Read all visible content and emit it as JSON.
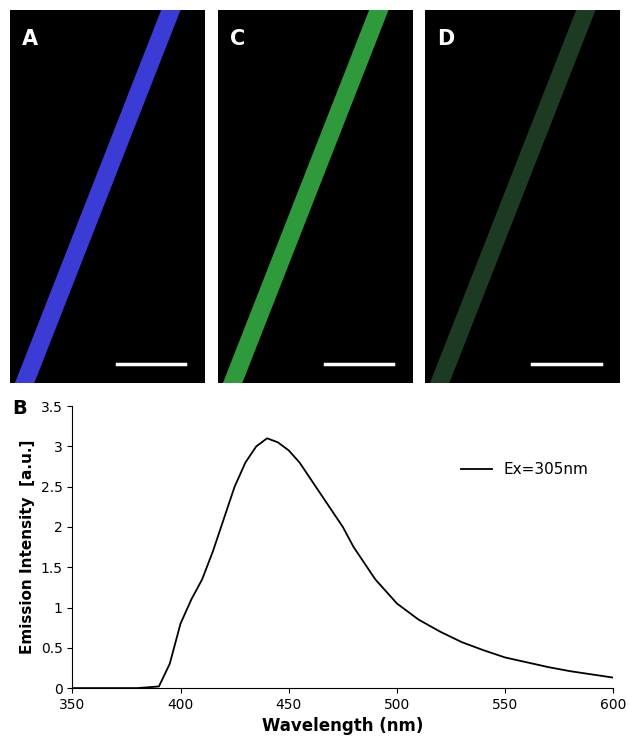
{
  "image_panels": [
    {
      "label": "A",
      "color": "#3b3bd6"
    },
    {
      "label": "C",
      "color": "#2f9a3c"
    },
    {
      "label": "D",
      "color": "#1d3a22"
    }
  ],
  "chart_data": {
    "type": "line",
    "annotations": [
      "B"
    ],
    "x_label": "Wavelength (nm)",
    "y_label": "Emission Intensity  [a.u.]",
    "x": [
      350,
      360,
      370,
      380,
      390,
      395,
      400,
      405,
      410,
      415,
      420,
      425,
      430,
      435,
      440,
      445,
      450,
      455,
      460,
      465,
      470,
      475,
      480,
      485,
      490,
      495,
      500,
      510,
      520,
      530,
      540,
      550,
      560,
      570,
      580,
      590,
      600
    ],
    "series": [
      {
        "name": "Ex=305nm",
        "color": "#000000",
        "values": [
          0,
          0,
          0,
          0,
          0.02,
          0.3,
          0.8,
          1.1,
          1.35,
          1.7,
          2.1,
          2.5,
          2.8,
          3.0,
          3.1,
          3.05,
          2.95,
          2.8,
          2.6,
          2.4,
          2.2,
          2.0,
          1.75,
          1.55,
          1.35,
          1.2,
          1.05,
          0.85,
          0.7,
          0.57,
          0.47,
          0.38,
          0.32,
          0.26,
          0.21,
          0.17,
          0.13
        ]
      }
    ],
    "xlim": [
      350,
      600
    ],
    "xticks": [
      350,
      400,
      450,
      500,
      550,
      600
    ],
    "ylim": [
      0,
      3.5
    ],
    "yticks": [
      0,
      0.5,
      1,
      1.5,
      2,
      2.5,
      3,
      3.5
    ],
    "grid": false,
    "legend": "upper right"
  }
}
